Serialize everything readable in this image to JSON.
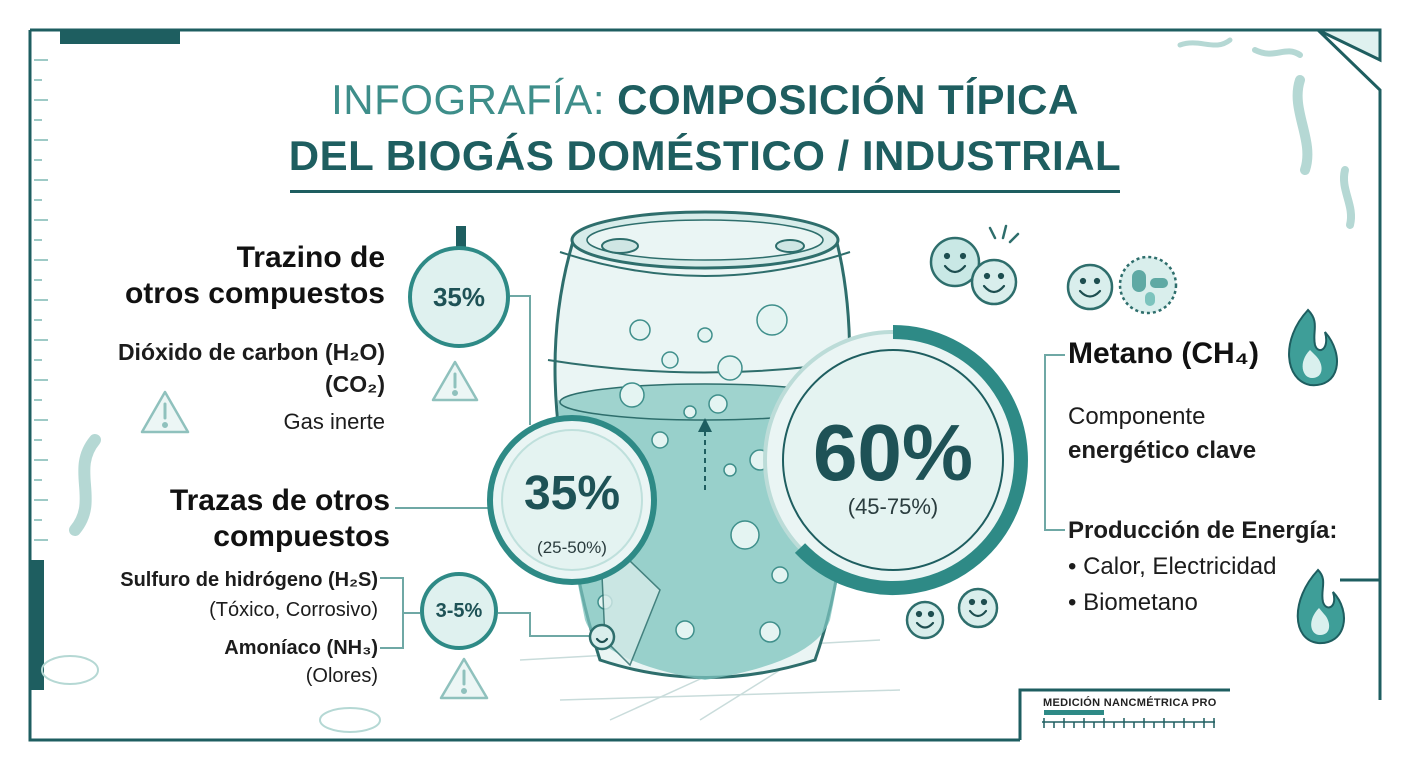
{
  "title": {
    "line1_light": "INFOGRAFÍA: ",
    "line1_bold": "COMPOSICIÓN TÍPICA",
    "line2": "DEL BIOGÁS DOMÉSTICO / INDUSTRIAL"
  },
  "left_top": {
    "heading_line1": "Trazino de",
    "heading_line2": "otros compuestos",
    "badge_pct": "35%",
    "compound_line1": "Dióxido de carbon (H₂O)",
    "compound_line2": "(CO₂)",
    "note": "Gas inerte"
  },
  "left_mid": {
    "heading_line1": "Trazas de otros",
    "heading_line2": "compuestos",
    "pct": "35%",
    "range": "(25-50%)"
  },
  "left_bottom": {
    "badge_pct": "3-5%",
    "h2s": "Sulfuro de hidrógeno (H₂S)",
    "h2s_note": "(Tóxico, Corrosivo)",
    "nh3": "Amoníaco (NH₃)",
    "nh3_note": "(Olores)"
  },
  "methane": {
    "pct": "60%",
    "range": "(45-75%)",
    "name": "Metano (CH₄)",
    "desc_line1": "Componente",
    "desc_line2": "energético clave"
  },
  "energy": {
    "heading": "Producción de Energía:",
    "item1": "• Calor, Electricidad",
    "item2": "• Biometano"
  },
  "footer_badge": "MEDICIÓN NANCMÉTRICA PRO",
  "icons": {
    "warning": "warning-triangle-icon",
    "flame": "flame-icon",
    "smiley": "smiling-microbe-icon",
    "bacteria": "bacteria-icon",
    "barrel": "biogas-barrel-icon"
  },
  "colors": {
    "teal_dark": "#1e5e60",
    "teal": "#2e8a86",
    "teal_light": "#dff1ef",
    "liquid": "#7cc3bd"
  }
}
